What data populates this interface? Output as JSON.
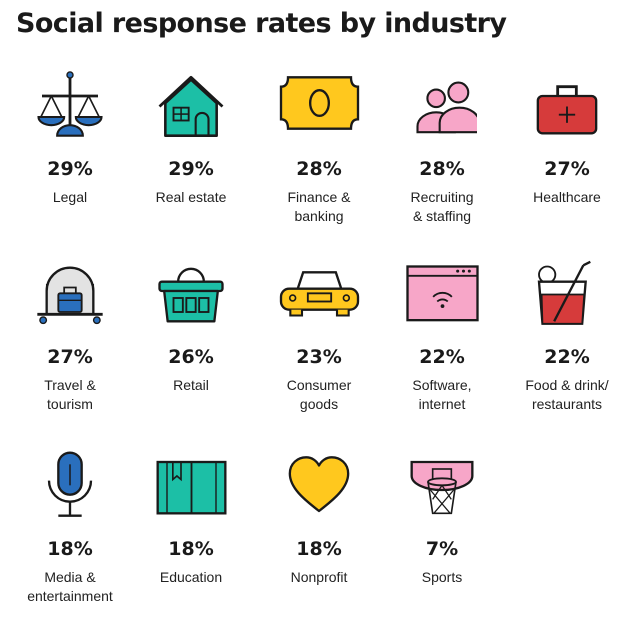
{
  "chart_data": {
    "type": "table",
    "title": "Social response rates by industry",
    "unit": "%",
    "items": [
      {
        "label": "Legal",
        "label_lines": [
          "Legal"
        ],
        "value": 29,
        "display": "29%",
        "icon": "scales-icon"
      },
      {
        "label": "Real estate",
        "label_lines": [
          "Real estate"
        ],
        "value": 29,
        "display": "29%",
        "icon": "house-icon"
      },
      {
        "label": "Finance & banking",
        "label_lines": [
          "Finance &",
          "banking"
        ],
        "value": 28,
        "display": "28%",
        "icon": "banknote-icon"
      },
      {
        "label": "Recruiting & staffing",
        "label_lines": [
          "Recruiting",
          "& staffing"
        ],
        "value": 28,
        "display": "28%",
        "icon": "people-icon"
      },
      {
        "label": "Healthcare",
        "label_lines": [
          "Healthcare"
        ],
        "value": 27,
        "display": "27%",
        "icon": "first-aid-kit-icon"
      },
      {
        "label": "Travel & tourism",
        "label_lines": [
          "Travel &",
          "tourism"
        ],
        "value": 27,
        "display": "27%",
        "icon": "luggage-trolley-icon"
      },
      {
        "label": "Retail",
        "label_lines": [
          "Retail"
        ],
        "value": 26,
        "display": "26%",
        "icon": "basket-icon"
      },
      {
        "label": "Consumer goods",
        "label_lines": [
          "Consumer",
          "goods"
        ],
        "value": 23,
        "display": "23%",
        "icon": "car-icon"
      },
      {
        "label": "Software, internet",
        "label_lines": [
          "Software,",
          "internet"
        ],
        "value": 22,
        "display": "22%",
        "icon": "browser-wifi-icon"
      },
      {
        "label": "Food & drink/ restaurants",
        "label_lines": [
          "Food & drink/",
          "restaurants"
        ],
        "value": 22,
        "display": "22%",
        "icon": "drink-glass-icon"
      },
      {
        "label": "Media & entertainment",
        "label_lines": [
          "Media &",
          "entertainment"
        ],
        "value": 18,
        "display": "18%",
        "icon": "microphone-icon"
      },
      {
        "label": "Education",
        "label_lines": [
          "Education"
        ],
        "value": 18,
        "display": "18%",
        "icon": "book-icon"
      },
      {
        "label": "Nonprofit",
        "label_lines": [
          "Nonprofit"
        ],
        "value": 18,
        "display": "18%",
        "icon": "heart-icon"
      },
      {
        "label": "Sports",
        "label_lines": [
          "Sports"
        ],
        "value": 7,
        "display": "7%",
        "icon": "basketball-hoop-icon"
      }
    ]
  },
  "colors": {
    "outline": "#1a1a1a",
    "blue": "#2a6fbd",
    "teal": "#1cbfa6",
    "yellow": "#ffc81e",
    "pink": "#f7a6c8",
    "red": "#d63b3b",
    "gray": "#e3e3e3"
  }
}
